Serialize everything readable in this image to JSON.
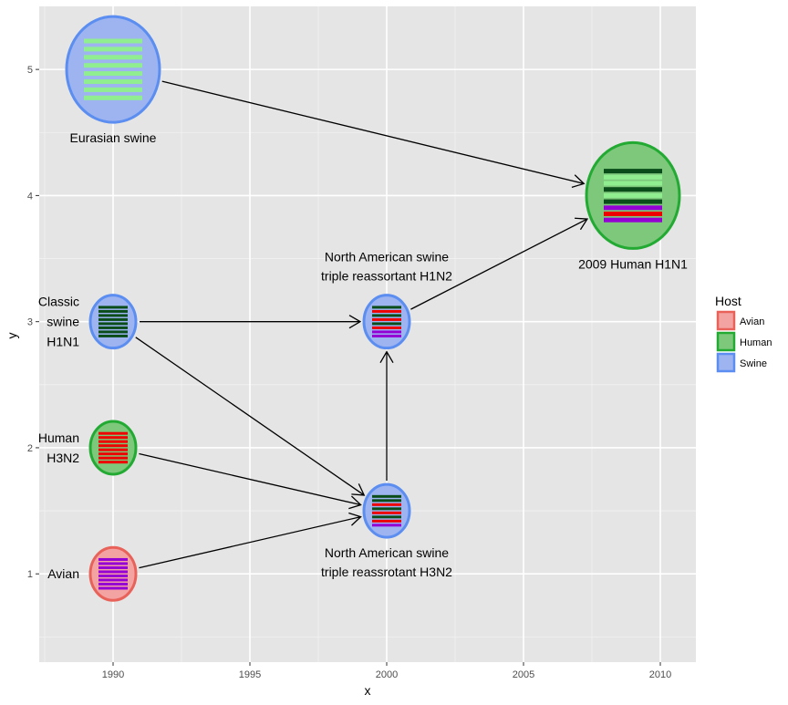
{
  "axes": {
    "x_title": "x",
    "y_title": "y",
    "x_ticks": [
      1990,
      1995,
      2000,
      2005,
      2010
    ],
    "y_ticks": [
      1,
      2,
      3,
      4,
      5
    ],
    "xlim": [
      1987.3,
      2011.3
    ],
    "ylim": [
      0.3,
      5.5
    ]
  },
  "colors": {
    "avian": "#9400d3",
    "human": "#ee0000",
    "classic_swine": "#0b4d1a",
    "eurasian": "#90ee90"
  },
  "legend": {
    "title": "Host",
    "items": [
      {
        "label": "Avian",
        "fill": "#f4a3a3",
        "stroke": "#e8625a"
      },
      {
        "label": "Human",
        "fill": "#7ec87c",
        "stroke": "#22aa33"
      },
      {
        "label": "Swine",
        "fill": "#9db4f0",
        "stroke": "#5b8ef0"
      }
    ]
  },
  "nodes": [
    {
      "id": "eurasian",
      "x": 1990,
      "y": 5,
      "host": "Swine",
      "big": true,
      "label_lines": [
        "Eurasian swine"
      ],
      "label_pos": "below",
      "stripes": [
        "eurasian",
        "eurasian",
        "eurasian",
        "eurasian",
        "eurasian",
        "eurasian",
        "eurasian",
        "eurasian"
      ]
    },
    {
      "id": "classic",
      "x": 1990,
      "y": 3,
      "host": "Swine",
      "big": false,
      "label_lines": [
        "Classic",
        "swine",
        "H1N1"
      ],
      "label_pos": "left",
      "stripes": [
        "classic_swine",
        "classic_swine",
        "classic_swine",
        "classic_swine",
        "classic_swine",
        "classic_swine",
        "classic_swine",
        "classic_swine"
      ]
    },
    {
      "id": "human",
      "x": 1990,
      "y": 2,
      "host": "Human",
      "big": false,
      "label_lines": [
        "Human",
        "H3N2"
      ],
      "label_pos": "left",
      "stripes": [
        "human",
        "human",
        "human",
        "human",
        "human",
        "human",
        "human",
        "human"
      ]
    },
    {
      "id": "avian",
      "x": 1990,
      "y": 1,
      "host": "Avian",
      "big": false,
      "label_lines": [
        "Avian"
      ],
      "label_pos": "left",
      "stripes": [
        "avian",
        "avian",
        "avian",
        "avian",
        "avian",
        "avian",
        "avian",
        "avian"
      ]
    },
    {
      "id": "tr_h1n1",
      "x": 2000,
      "y": 3,
      "host": "Swine",
      "big": false,
      "label_lines": [
        "North American swine",
        "triple reassortant H1N2"
      ],
      "label_pos": "above",
      "stripes": [
        "classic_swine",
        "human",
        "classic_swine",
        "human",
        "classic_swine",
        "human",
        "avian",
        "avian"
      ]
    },
    {
      "id": "tr_h3n2",
      "x": 2000,
      "y": 1.5,
      "host": "Swine",
      "big": false,
      "label_lines": [
        "North American swine",
        "triple reassrotant H3N2"
      ],
      "label_pos": "below",
      "stripes": [
        "classic_swine",
        "classic_swine",
        "human",
        "classic_swine",
        "human",
        "classic_swine",
        "human",
        "avian"
      ]
    },
    {
      "id": "h1n1_2009",
      "x": 2009,
      "y": 4,
      "host": "Human",
      "big": true,
      "label_lines": [
        "2009 Human H1N1"
      ],
      "label_pos": "below",
      "stripes": [
        "classic_swine",
        "eurasian",
        "eurasian",
        "classic_swine",
        "eurasian",
        "classic_swine",
        "avian",
        "human",
        "avian"
      ]
    }
  ],
  "edges": [
    {
      "from": "eurasian",
      "to": "h1n1_2009"
    },
    {
      "from": "tr_h1n1",
      "to": "h1n1_2009"
    },
    {
      "from": "classic",
      "to": "tr_h1n1"
    },
    {
      "from": "classic",
      "to": "tr_h3n2"
    },
    {
      "from": "human",
      "to": "tr_h3n2"
    },
    {
      "from": "avian",
      "to": "tr_h3n2"
    },
    {
      "from": "tr_h3n2",
      "to": "tr_h1n1"
    }
  ]
}
